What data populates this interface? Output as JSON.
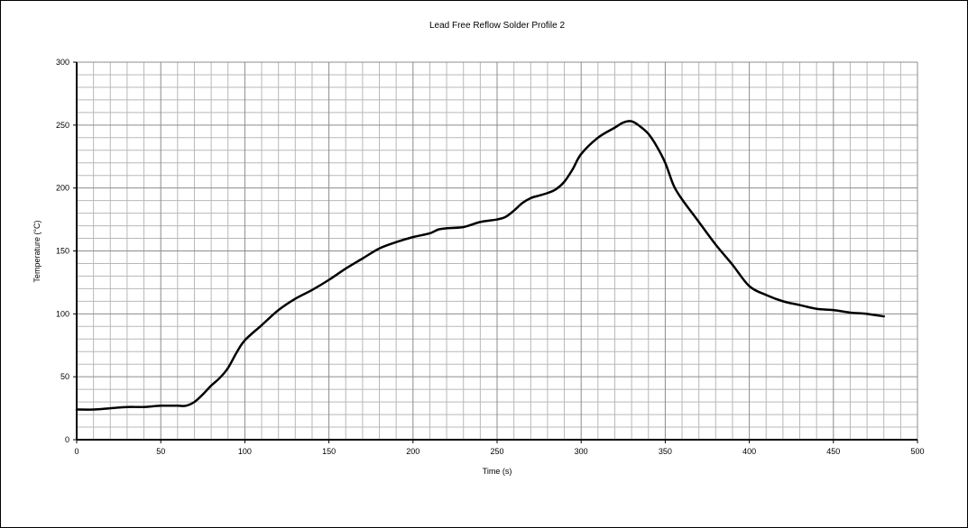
{
  "chart_data": {
    "type": "line",
    "title": "Lead Free Reflow Solder Profile 2",
    "xlabel": "Time (s)",
    "ylabel": "Temperature (°C)",
    "xlim": [
      0,
      500
    ],
    "ylim": [
      0,
      300
    ],
    "x_ticks": [
      0,
      50,
      100,
      150,
      200,
      250,
      300,
      350,
      400,
      450,
      500
    ],
    "y_ticks": [
      0,
      50,
      100,
      150,
      200,
      250,
      300
    ],
    "x_tick_labels": [
      "0",
      "50",
      "100",
      "150",
      "200",
      "250",
      "300",
      "350",
      "400",
      "450",
      "500"
    ],
    "y_tick_labels": [
      "0",
      "50",
      "100",
      "150",
      "200",
      "250",
      "300"
    ],
    "grid": true,
    "legend": "none",
    "series": [
      {
        "color": "#000000",
        "x": [
          0,
          10,
          20,
          30,
          40,
          50,
          60,
          65,
          70,
          75,
          80,
          85,
          90,
          95,
          100,
          110,
          120,
          130,
          140,
          150,
          160,
          170,
          180,
          190,
          200,
          210,
          215,
          220,
          230,
          240,
          250,
          255,
          260,
          265,
          270,
          275,
          280,
          285,
          290,
          295,
          300,
          310,
          320,
          325,
          330,
          335,
          340,
          345,
          350,
          355,
          360,
          370,
          380,
          390,
          400,
          410,
          420,
          430,
          440,
          450,
          460,
          470,
          480
        ],
        "values": [
          24,
          24,
          25,
          26,
          26,
          27,
          27,
          27,
          30,
          36,
          43,
          49,
          57,
          69,
          79,
          91,
          103,
          112,
          119,
          127,
          136,
          144,
          152,
          157,
          161,
          164,
          167,
          168,
          169,
          173,
          175,
          177,
          182,
          188,
          192,
          194,
          196,
          199,
          205,
          215,
          227,
          240,
          248,
          252,
          253,
          249,
          243,
          233,
          220,
          202,
          191,
          173,
          155,
          139,
          122,
          115,
          110,
          107,
          104,
          103,
          101,
          100,
          98
        ]
      }
    ]
  }
}
